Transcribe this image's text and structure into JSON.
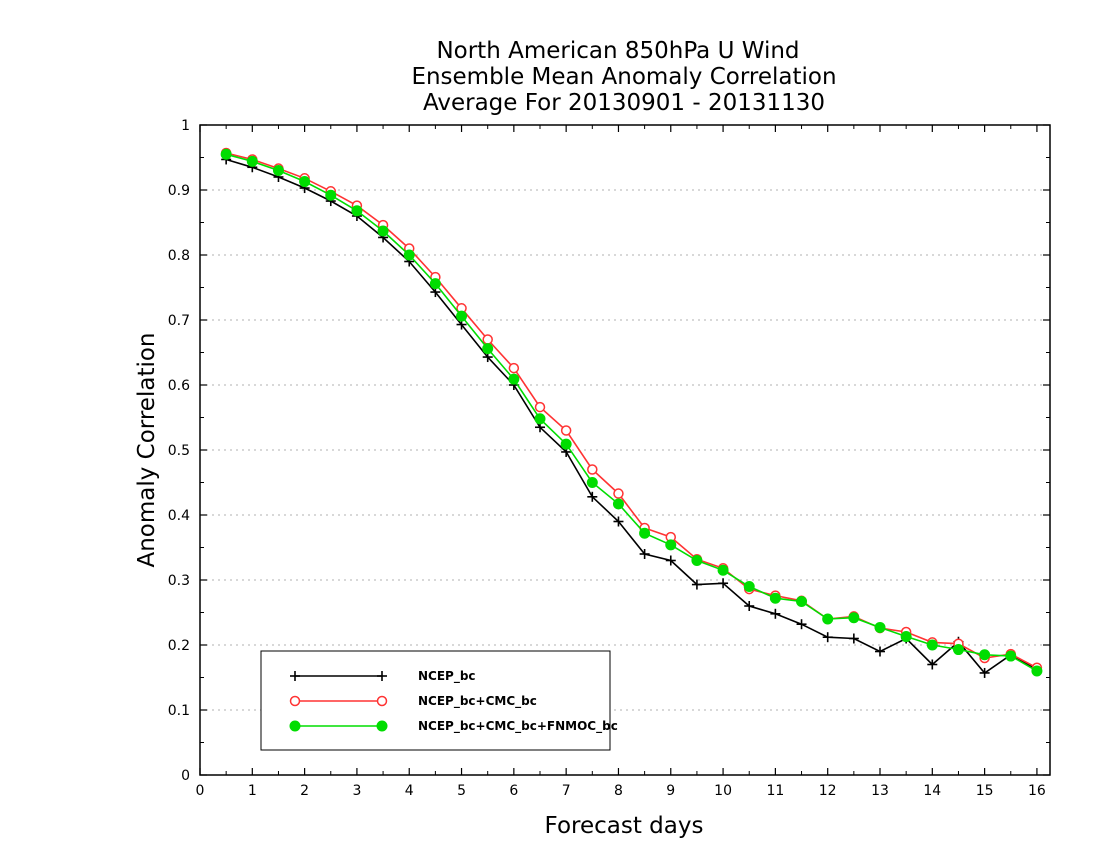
{
  "chart_data": {
    "type": "line",
    "title_lines": [
      "North American 850hPa U Wind",
      "Ensemble Mean Anomaly Correlation",
      "Average For 20130901 - 20131130"
    ],
    "xlabel": "Forecast days",
    "ylabel": "Anomaly Correlation",
    "xlim": [
      0,
      16.25
    ],
    "ylim": [
      0,
      1
    ],
    "x_ticks": [
      "0",
      "1",
      "2",
      "3",
      "4",
      "5",
      "6",
      "7",
      "8",
      "9",
      "10",
      "11",
      "12",
      "13",
      "14",
      "15",
      "16"
    ],
    "y_ticks": [
      "0",
      "0.1",
      "0.2",
      "0.3",
      "0.4",
      "0.5",
      "0.6",
      "0.7",
      "0.8",
      "0.9",
      "1"
    ],
    "grid": "horizontal dotted",
    "legend_position": "bottom-left",
    "x": [
      0.5,
      1,
      1.5,
      2,
      2.5,
      3,
      3.5,
      4,
      4.5,
      5,
      5.5,
      6,
      6.5,
      7,
      7.5,
      8,
      8.5,
      9,
      9.5,
      10,
      10.5,
      11,
      11.5,
      12,
      12.5,
      13,
      13.5,
      14,
      14.5,
      15,
      15.5,
      16
    ],
    "series": [
      {
        "name": "NCEP_bc",
        "color": "#000000",
        "marker": "plus",
        "values": [
          0.947,
          0.935,
          0.92,
          0.903,
          0.883,
          0.86,
          0.827,
          0.79,
          0.743,
          0.693,
          0.643,
          0.6,
          0.535,
          0.497,
          0.428,
          0.39,
          0.34,
          0.33,
          0.293,
          0.295,
          0.26,
          0.248,
          0.232,
          0.212,
          0.21,
          0.19,
          0.21,
          0.17,
          0.205,
          0.157,
          0.185,
          0.162
        ]
      },
      {
        "name": "NCEP_bc+CMC_bc",
        "color": "#ff3333",
        "marker": "open-circle",
        "values": [
          0.957,
          0.947,
          0.933,
          0.918,
          0.898,
          0.876,
          0.846,
          0.81,
          0.766,
          0.718,
          0.67,
          0.626,
          0.566,
          0.53,
          0.47,
          0.433,
          0.38,
          0.366,
          0.332,
          0.318,
          0.286,
          0.276,
          0.268,
          0.24,
          0.244,
          0.226,
          0.22,
          0.204,
          0.202,
          0.18,
          0.186,
          0.165
        ]
      },
      {
        "name": "NCEP_bc+CMC_bc+FNMOC_bc",
        "color": "#00dd00",
        "marker": "filled-circle",
        "values": [
          0.955,
          0.944,
          0.93,
          0.913,
          0.892,
          0.868,
          0.837,
          0.8,
          0.756,
          0.706,
          0.656,
          0.609,
          0.548,
          0.509,
          0.45,
          0.417,
          0.372,
          0.354,
          0.33,
          0.315,
          0.29,
          0.272,
          0.267,
          0.24,
          0.242,
          0.227,
          0.213,
          0.2,
          0.193,
          0.185,
          0.183,
          0.16
        ]
      }
    ]
  }
}
